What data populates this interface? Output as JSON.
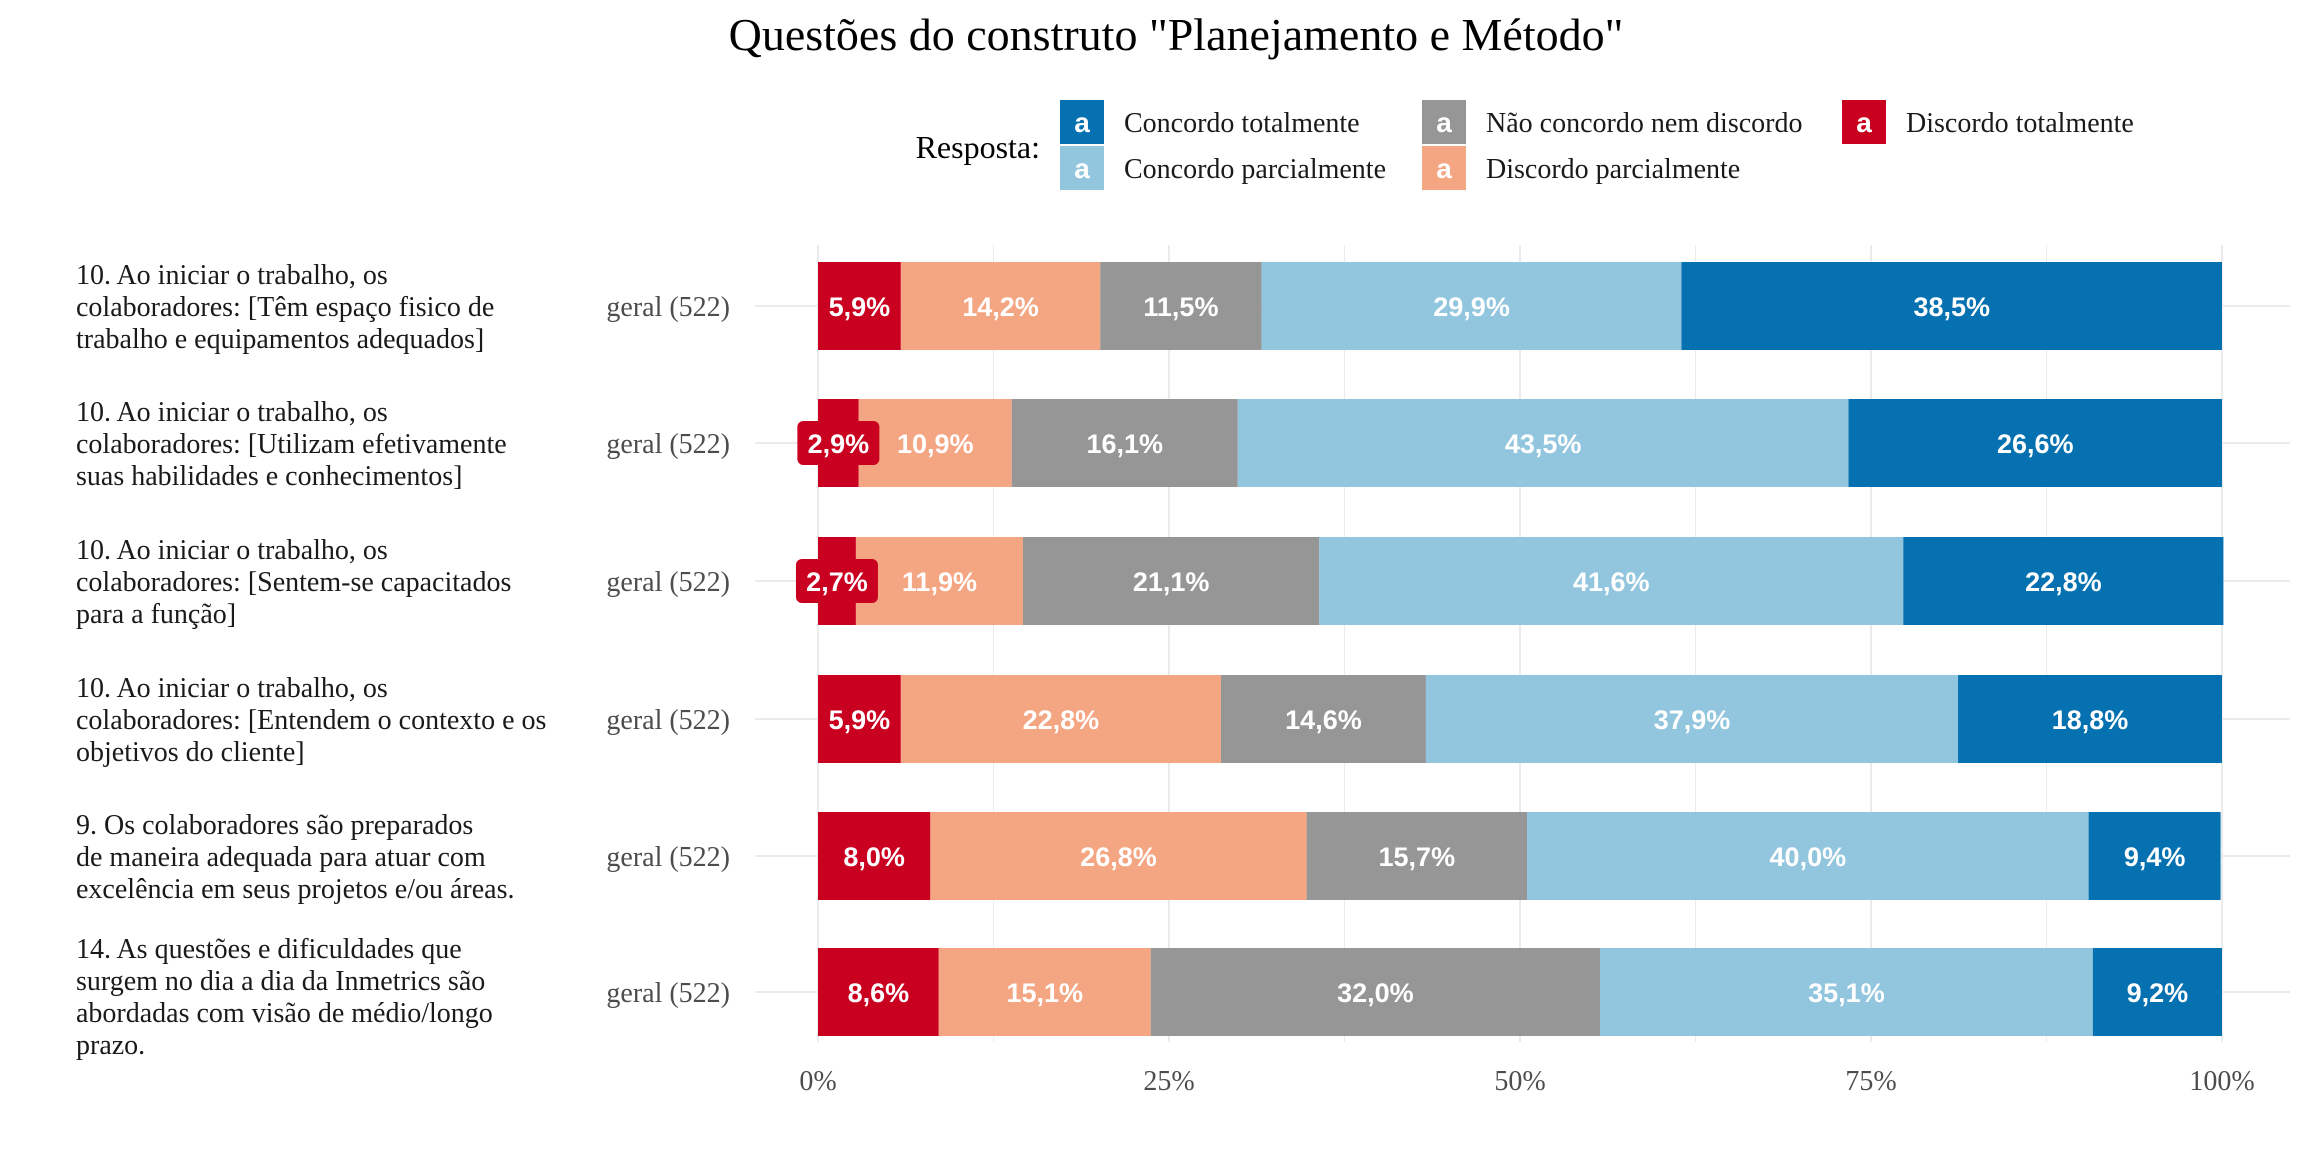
{
  "chart_data": {
    "type": "bar",
    "orientation": "horizontal",
    "stacked": true,
    "title": "Questões do construto \"Planejamento e Método\"",
    "xlabel": "",
    "ylabel": "",
    "xlim": [
      0,
      100
    ],
    "x_ticks": [
      "0%",
      "25%",
      "50%",
      "75%",
      "100%"
    ],
    "grid": true,
    "legend": {
      "title": "Resposta:",
      "position": "top",
      "key_glyph": "a",
      "items": [
        {
          "name": "Concordo totalmente",
          "color": "#0571b0"
        },
        {
          "name": "Concordo parcialmente",
          "color": "#92c5de"
        },
        {
          "name": "Não concordo nem discordo",
          "color": "#969696"
        },
        {
          "name": "Discordo parcialmente",
          "color": "#f4a582"
        },
        {
          "name": "Discordo totalmente",
          "color": "#ca0020"
        }
      ]
    },
    "series_order": [
      "Discordo totalmente",
      "Discordo parcialmente",
      "Não concordo nem discordo",
      "Concordo parcialmente",
      "Concordo totalmente"
    ],
    "series_colors": [
      "#ca0020",
      "#f4a582",
      "#969696",
      "#92c5de",
      "#0571b0"
    ],
    "rows": [
      {
        "question": [
          "10. Ao iniciar o trabalho, os",
          "colaboradores: [Têm espaço fisico de",
          "trabalho e equipamentos adequados]"
        ],
        "group": "geral (522)",
        "values": [
          5.9,
          14.2,
          11.5,
          29.9,
          38.5
        ],
        "labels": [
          "5,9%",
          "14,2%",
          "11,5%",
          "29,9%",
          "38,5%"
        ]
      },
      {
        "question": [
          "10. Ao iniciar o trabalho, os",
          "colaboradores: [Utilizam efetivamente",
          "suas habilidades e conhecimentos]"
        ],
        "group": "geral (522)",
        "values": [
          2.9,
          10.9,
          16.1,
          43.5,
          26.6
        ],
        "labels": [
          "2,9%",
          "10,9%",
          "16,1%",
          "43,5%",
          "26,6%"
        ]
      },
      {
        "question": [
          "10. Ao iniciar o trabalho, os",
          "colaboradores: [Sentem-se capacitados",
          "para a função]"
        ],
        "group": "geral (522)",
        "values": [
          2.7,
          11.9,
          21.1,
          41.6,
          22.8
        ],
        "labels": [
          "2,7%",
          "11,9%",
          "21,1%",
          "41,6%",
          "22,8%"
        ]
      },
      {
        "question": [
          "10. Ao iniciar o trabalho, os",
          "colaboradores: [Entendem o contexto e os",
          "objetivos do cliente]"
        ],
        "group": "geral (522)",
        "values": [
          5.9,
          22.8,
          14.6,
          37.9,
          18.8
        ],
        "labels": [
          "5,9%",
          "22,8%",
          "14,6%",
          "37,9%",
          "18,8%"
        ]
      },
      {
        "question": [
          "9. Os colaboradores são preparados",
          "de maneira adequada para atuar com",
          "excelência em seus projetos e/ou áreas."
        ],
        "group": "geral (522)",
        "values": [
          8.0,
          26.8,
          15.7,
          40.0,
          9.4
        ],
        "labels": [
          "8,0%",
          "26,8%",
          "15,7%",
          "40,0%",
          "9,4%"
        ]
      },
      {
        "question": [
          "14. As questões e dificuldades que",
          "surgem no dia a dia da Inmetrics são",
          "abordadas com visão de médio/longo",
          "prazo."
        ],
        "group": "geral (522)",
        "values": [
          8.6,
          15.1,
          32.0,
          35.1,
          9.2
        ],
        "labels": [
          "8,6%",
          "15,1%",
          "32,0%",
          "35,1%",
          "9,2%"
        ]
      }
    ]
  }
}
